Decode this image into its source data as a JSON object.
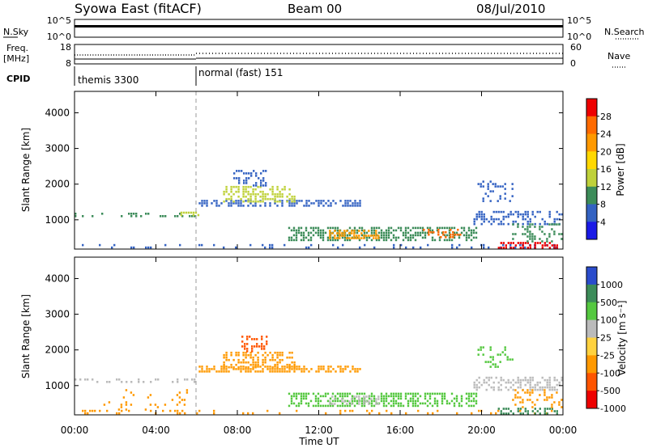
{
  "header": {
    "title": "Syowa East (fitACF)",
    "beam": "Beam 00",
    "date": "08/Jul/2010"
  },
  "summary_panels": {
    "nsky": {
      "label": "N.Sky",
      "ticks": [
        "10^5",
        "10^0"
      ]
    },
    "nsearch": {
      "label": "N.Search",
      "ticks": [
        "10^5",
        "10^0"
      ]
    },
    "freq": {
      "label_line1": "Freq.",
      "label_line2": "[MHz]",
      "ticks": [
        "18",
        "8"
      ]
    },
    "nave": {
      "label": "Nave",
      "ticks": [
        "60",
        "0"
      ]
    },
    "cpid": {
      "label": "CPID",
      "segments": [
        {
          "name": "themis 3300",
          "start_hour": 0,
          "end_hour": 6
        },
        {
          "name": "normal (fast) 151",
          "start_hour": 6,
          "end_hour": 24
        }
      ]
    }
  },
  "chart_data": [
    {
      "type": "heatmap",
      "panel": "power",
      "ylabel": "Slant Range [km]",
      "xlabel": "Time UT",
      "xlim": [
        0,
        24
      ],
      "ylim": [
        180,
        4600
      ],
      "yticks": [
        "1000",
        "2000",
        "3000",
        "4000"
      ],
      "xticks": [
        "00:00",
        "04:00",
        "08:00",
        "12:00",
        "16:00",
        "20:00",
        "00:00"
      ],
      "colorbar": {
        "label": "Power [dB]",
        "ticks": [
          "28",
          "24",
          "20",
          "16",
          "12",
          "8",
          "4"
        ],
        "colors": [
          "#ee0000",
          "#ff6a00",
          "#ff9900",
          "#ffd800",
          "#bfd13a",
          "#3c8c59",
          "#3362c2",
          "#1a1ae6"
        ]
      },
      "regions": [
        {
          "x": [
            0.0,
            24.0
          ],
          "y": [
            190,
            320
          ],
          "color": "#3362c2",
          "density": 0.18
        },
        {
          "x": [
            0.0,
            6.0
          ],
          "y": [
            1100,
            1200
          ],
          "color": "#3c8c59",
          "density": 0.28
        },
        {
          "x": [
            5.2,
            6.1
          ],
          "y": [
            1120,
            1230
          ],
          "color": "#bfd13a",
          "density": 0.6
        },
        {
          "x": [
            6.1,
            14.0
          ],
          "y": [
            1380,
            1560
          ],
          "color": "#3362c2",
          "density": 0.6
        },
        {
          "x": [
            7.3,
            10.8
          ],
          "y": [
            1500,
            1950
          ],
          "color": "#bfd13a",
          "density": 0.5
        },
        {
          "x": [
            7.8,
            9.4
          ],
          "y": [
            1950,
            2400
          ],
          "color": "#3362c2",
          "density": 0.45
        },
        {
          "x": [
            10.5,
            19.8
          ],
          "y": [
            400,
            800
          ],
          "color": "#3c8c59",
          "density": 0.55
        },
        {
          "x": [
            12.5,
            15.0
          ],
          "y": [
            500,
            720
          ],
          "color": "#ff9900",
          "density": 0.45
        },
        {
          "x": [
            17.0,
            19.0
          ],
          "y": [
            500,
            750
          ],
          "color": "#ff6a00",
          "density": 0.4
        },
        {
          "x": [
            19.6,
            24.0
          ],
          "y": [
            900,
            1250
          ],
          "color": "#3362c2",
          "density": 0.45
        },
        {
          "x": [
            20.8,
            23.7
          ],
          "y": [
            230,
            380
          ],
          "color": "#ee0000",
          "density": 0.5
        },
        {
          "x": [
            21.5,
            24.0
          ],
          "y": [
            400,
            900
          ],
          "color": "#3c8c59",
          "density": 0.35
        },
        {
          "x": [
            19.8,
            21.5
          ],
          "y": [
            1500,
            2100
          ],
          "color": "#3362c2",
          "density": 0.22
        }
      ]
    },
    {
      "type": "heatmap",
      "panel": "velocity",
      "ylabel": "Slant Range [km]",
      "xlabel": "Time UT",
      "xlim": [
        0,
        24
      ],
      "ylim": [
        180,
        4600
      ],
      "yticks": [
        "1000",
        "2000",
        "3000",
        "4000"
      ],
      "xticks": [
        "00:00",
        "04:00",
        "08:00",
        "12:00",
        "16:00",
        "20:00",
        "00:00"
      ],
      "colorbar": {
        "label": "Velocity [m s⁻¹]",
        "ticks": [
          "1000",
          "500",
          "100",
          "25",
          "-25",
          "-100",
          "-500",
          "-1000"
        ],
        "colors": [
          "#2a4ccc",
          "#3c8c59",
          "#55c840",
          "#bbbbbb",
          "#ffd23f",
          "#ff9900",
          "#ff5500",
          "#ee0000"
        ]
      },
      "regions": [
        {
          "x": [
            0.0,
            24.0
          ],
          "y": [
            190,
            320
          ],
          "color": "#ff9900",
          "density": 0.16
        },
        {
          "x": [
            0.0,
            6.0
          ],
          "y": [
            1100,
            1200
          ],
          "color": "#bbbbbb",
          "density": 0.25
        },
        {
          "x": [
            1.3,
            5.5
          ],
          "y": [
            350,
            900
          ],
          "color": "#ff9900",
          "density": 0.08
        },
        {
          "x": [
            6.1,
            14.0
          ],
          "y": [
            1380,
            1560
          ],
          "color": "#ff9900",
          "density": 0.6
        },
        {
          "x": [
            7.3,
            10.8
          ],
          "y": [
            1500,
            1950
          ],
          "color": "#ff9900",
          "density": 0.5
        },
        {
          "x": [
            8.2,
            9.4
          ],
          "y": [
            1950,
            2400
          ],
          "color": "#ff5500",
          "density": 0.4
        },
        {
          "x": [
            10.5,
            19.8
          ],
          "y": [
            400,
            800
          ],
          "color": "#55c840",
          "density": 0.55
        },
        {
          "x": [
            12.5,
            15.0
          ],
          "y": [
            500,
            720
          ],
          "color": "#bbbbbb",
          "density": 0.35
        },
        {
          "x": [
            19.6,
            24.0
          ],
          "y": [
            900,
            1250
          ],
          "color": "#bbbbbb",
          "density": 0.45
        },
        {
          "x": [
            20.8,
            23.7
          ],
          "y": [
            230,
            380
          ],
          "color": "#3c8c59",
          "density": 0.45
        },
        {
          "x": [
            21.5,
            24.0
          ],
          "y": [
            400,
            900
          ],
          "color": "#ff9900",
          "density": 0.3
        },
        {
          "x": [
            19.8,
            21.5
          ],
          "y": [
            1500,
            2100
          ],
          "color": "#55c840",
          "density": 0.2
        }
      ]
    }
  ]
}
